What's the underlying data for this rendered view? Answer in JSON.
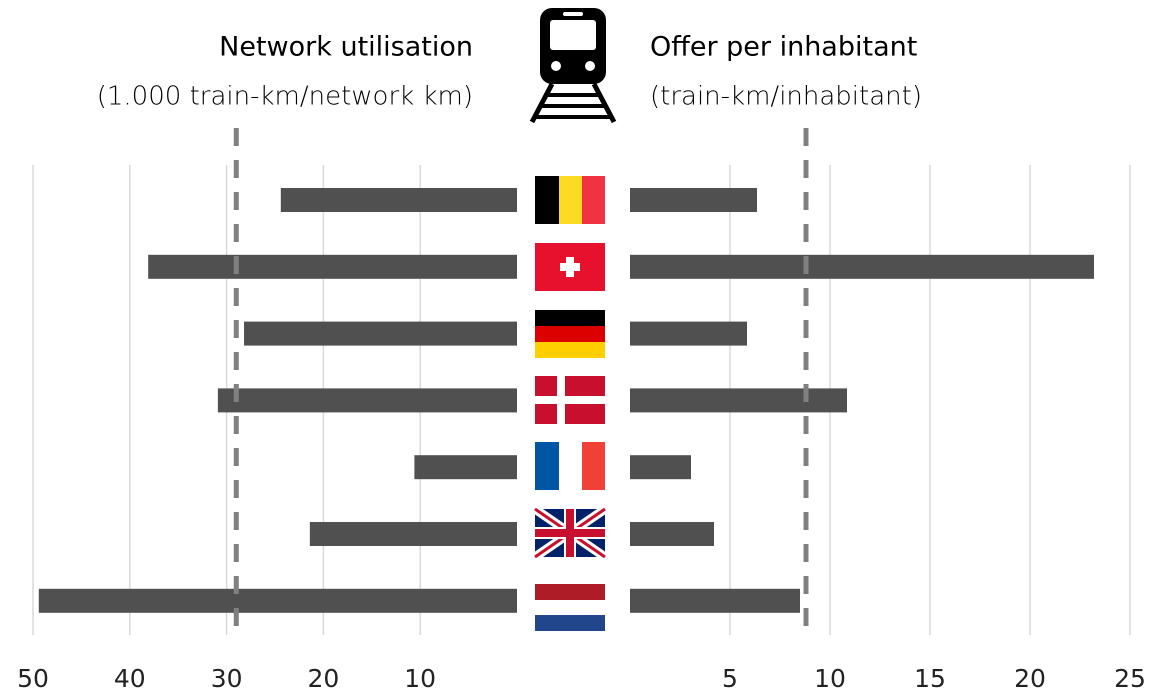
{
  "chart_data": [
    {
      "type": "bar",
      "orientation": "horizontal",
      "title": "Network utilisation",
      "subtitle": "(1.000 train-km/network km)",
      "values": [
        24.4,
        38.1,
        28.2,
        30.9,
        10.6,
        21.4,
        49.4
      ],
      "color": "#505050",
      "xlim": [
        0,
        50
      ],
      "xticks": [
        10,
        20,
        30,
        40,
        50
      ],
      "x_reversed": true,
      "grid": true,
      "reference": 29,
      "reference_color": "#808080"
    },
    {
      "type": "bar",
      "orientation": "horizontal",
      "title": "Offer per inhabitant",
      "subtitle": "(train-km/inhabitant)",
      "values": [
        6.35,
        23.2,
        5.85,
        10.85,
        3.05,
        4.2,
        8.5
      ],
      "color": "#505050",
      "xlim": [
        0,
        25
      ],
      "xticks": [
        5,
        10,
        15,
        20,
        25
      ],
      "x_reversed": false,
      "grid": true,
      "reference": 8.8,
      "reference_color": "#808080"
    }
  ]
}
